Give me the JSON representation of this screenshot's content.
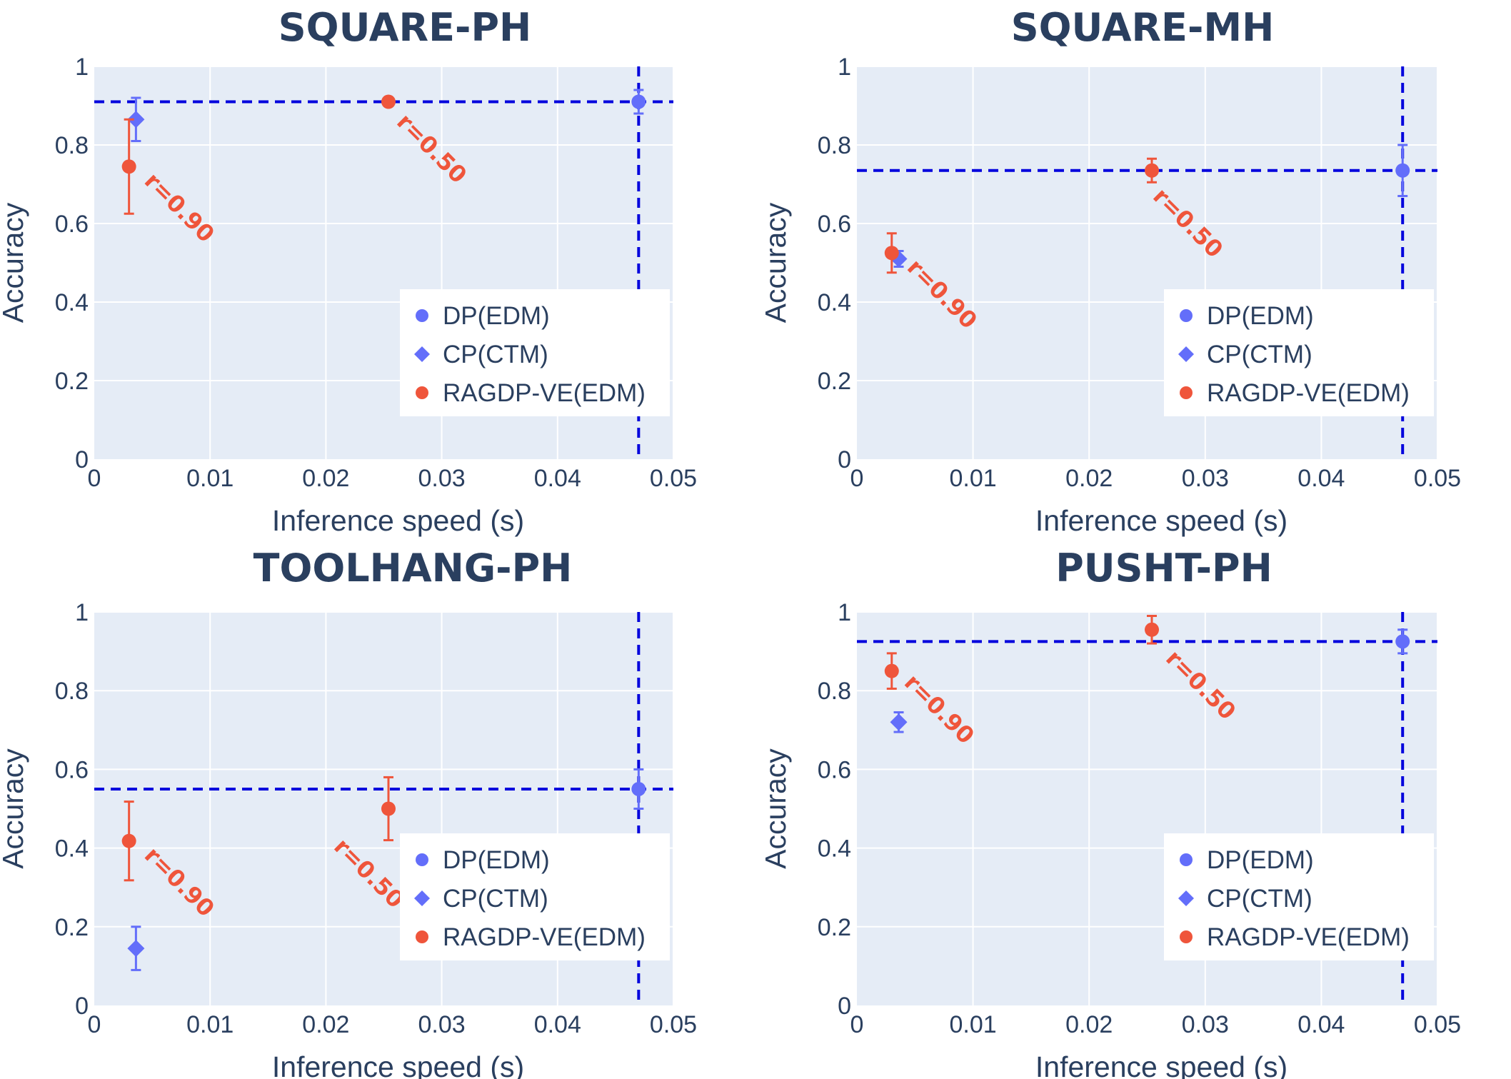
{
  "colors": {
    "dp": "#636efa",
    "cp": "#636efa",
    "ragdp": "#ef553b",
    "ref_line": "#0000dd",
    "plot_bg": "#e5ecf6",
    "grid": "#ffffff",
    "text": "#2a3f5f"
  },
  "chart_data": [
    {
      "type": "scatter",
      "title": "SQUARE-PH",
      "xlabel": "Inference speed (s)",
      "ylabel": "Accuracy",
      "xlim": [
        0,
        0.05
      ],
      "ylim": [
        0,
        1
      ],
      "xticks": [
        0,
        0.01,
        0.02,
        0.03,
        0.04,
        0.05
      ],
      "xtick_labels": [
        "0",
        "0.01",
        "0.02",
        "0.03",
        "0.04",
        "0.05"
      ],
      "yticks": [
        0,
        0.2,
        0.4,
        0.6,
        0.8,
        1
      ],
      "ytick_labels": [
        "0",
        "0.2",
        "0.4",
        "0.6",
        "0.8",
        "1"
      ],
      "grid": true,
      "legend_position": "bottom-right",
      "reference_lines": {
        "x": 0.047,
        "y": 0.91
      },
      "series": [
        {
          "name": "DP(EDM)",
          "marker": "circle",
          "color": "#636efa",
          "points": [
            {
              "x": 0.047,
              "y": 0.91,
              "err": 0.03
            }
          ]
        },
        {
          "name": "CP(CTM)",
          "marker": "diamond",
          "color": "#636efa",
          "points": [
            {
              "x": 0.0036,
              "y": 0.865,
              "err": 0.055
            }
          ]
        },
        {
          "name": "RAGDP-VE(EDM)",
          "marker": "circle",
          "color": "#ef553b",
          "points": [
            {
              "x": 0.003,
              "y": 0.745,
              "err": 0.12
            },
            {
              "x": 0.0254,
              "y": 0.91,
              "err": 0
            }
          ]
        }
      ],
      "annotations": [
        {
          "text": "r=0.90",
          "x": 0.003,
          "y": 0.745
        },
        {
          "text": "r=0.50",
          "x": 0.0254,
          "y": 0.91
        }
      ]
    },
    {
      "type": "scatter",
      "title": "SQUARE-MH",
      "xlabel": "Inference speed (s)",
      "ylabel": "Accuracy",
      "xlim": [
        0,
        0.05
      ],
      "ylim": [
        0,
        1
      ],
      "xticks": [
        0,
        0.01,
        0.02,
        0.03,
        0.04,
        0.05
      ],
      "xtick_labels": [
        "0",
        "0.01",
        "0.02",
        "0.03",
        "0.04",
        "0.05"
      ],
      "yticks": [
        0,
        0.2,
        0.4,
        0.6,
        0.8,
        1
      ],
      "ytick_labels": [
        "0",
        "0.2",
        "0.4",
        "0.6",
        "0.8",
        "1"
      ],
      "grid": true,
      "legend_position": "bottom-right",
      "reference_lines": {
        "x": 0.047,
        "y": 0.735
      },
      "series": [
        {
          "name": "DP(EDM)",
          "marker": "circle",
          "color": "#636efa",
          "points": [
            {
              "x": 0.047,
              "y": 0.735,
              "err": 0.065
            }
          ]
        },
        {
          "name": "CP(CTM)",
          "marker": "diamond",
          "color": "#636efa",
          "points": [
            {
              "x": 0.0036,
              "y": 0.51,
              "err": 0.02
            }
          ]
        },
        {
          "name": "RAGDP-VE(EDM)",
          "marker": "circle",
          "color": "#ef553b",
          "points": [
            {
              "x": 0.003,
              "y": 0.525,
              "err": 0.05
            },
            {
              "x": 0.0254,
              "y": 0.735,
              "err": 0.03
            }
          ]
        }
      ],
      "annotations": [
        {
          "text": "r=0.90",
          "x": 0.003,
          "y": 0.525
        },
        {
          "text": "r=0.50",
          "x": 0.0254,
          "y": 0.735
        }
      ]
    },
    {
      "type": "scatter",
      "title": "TOOLHANG-PH",
      "xlabel": "Inference speed (s)",
      "ylabel": "Accuracy",
      "xlim": [
        0,
        0.05
      ],
      "ylim": [
        0,
        1
      ],
      "xticks": [
        0,
        0.01,
        0.02,
        0.03,
        0.04,
        0.05
      ],
      "xtick_labels": [
        "0",
        "0.01",
        "0.02",
        "0.03",
        "0.04",
        "0.05"
      ],
      "yticks": [
        0,
        0.2,
        0.4,
        0.6,
        0.8,
        1
      ],
      "ytick_labels": [
        "0",
        "0.2",
        "0.4",
        "0.6",
        "0.8",
        "1"
      ],
      "grid": true,
      "legend_position": "bottom-right",
      "reference_lines": {
        "x": 0.047,
        "y": 0.55
      },
      "series": [
        {
          "name": "DP(EDM)",
          "marker": "circle",
          "color": "#636efa",
          "points": [
            {
              "x": 0.047,
              "y": 0.55,
              "err": 0.05
            }
          ]
        },
        {
          "name": "CP(CTM)",
          "marker": "diamond",
          "color": "#636efa",
          "points": [
            {
              "x": 0.0036,
              "y": 0.145,
              "err": 0.055
            }
          ]
        },
        {
          "name": "RAGDP-VE(EDM)",
          "marker": "circle",
          "color": "#ef553b",
          "points": [
            {
              "x": 0.003,
              "y": 0.418,
              "err": 0.1
            },
            {
              "x": 0.0254,
              "y": 0.5,
              "err": 0.08
            }
          ]
        }
      ],
      "annotations": [
        {
          "text": "r=0.90",
          "x": 0.003,
          "y": 0.418
        },
        {
          "text": "r=0.50",
          "x": 0.0254,
          "y": 0.5
        }
      ]
    },
    {
      "type": "scatter",
      "title": "PUSHT-PH",
      "xlabel": "Inference speed (s)",
      "ylabel": "Accuracy",
      "xlim": [
        0,
        0.05
      ],
      "ylim": [
        0,
        1
      ],
      "xticks": [
        0,
        0.01,
        0.02,
        0.03,
        0.04,
        0.05
      ],
      "xtick_labels": [
        "0",
        "0.01",
        "0.02",
        "0.03",
        "0.04",
        "0.05"
      ],
      "yticks": [
        0,
        0.2,
        0.4,
        0.6,
        0.8,
        1
      ],
      "ytick_labels": [
        "0",
        "0.2",
        "0.4",
        "0.6",
        "0.8",
        "1"
      ],
      "grid": true,
      "legend_position": "bottom-right",
      "reference_lines": {
        "x": 0.047,
        "y": 0.925
      },
      "series": [
        {
          "name": "DP(EDM)",
          "marker": "circle",
          "color": "#636efa",
          "points": [
            {
              "x": 0.047,
              "y": 0.925,
              "err": 0.03
            }
          ]
        },
        {
          "name": "CP(CTM)",
          "marker": "diamond",
          "color": "#636efa",
          "points": [
            {
              "x": 0.0036,
              "y": 0.72,
              "err": 0.025
            }
          ]
        },
        {
          "name": "RAGDP-VE(EDM)",
          "marker": "circle",
          "color": "#ef553b",
          "points": [
            {
              "x": 0.003,
              "y": 0.85,
              "err": 0.045
            },
            {
              "x": 0.0254,
              "y": 0.955,
              "err": 0.035
            }
          ]
        }
      ],
      "annotations": [
        {
          "text": "r=0.90",
          "x": 0.003,
          "y": 0.85
        },
        {
          "text": "r=0.50",
          "x": 0.0254,
          "y": 0.955
        }
      ]
    }
  ]
}
